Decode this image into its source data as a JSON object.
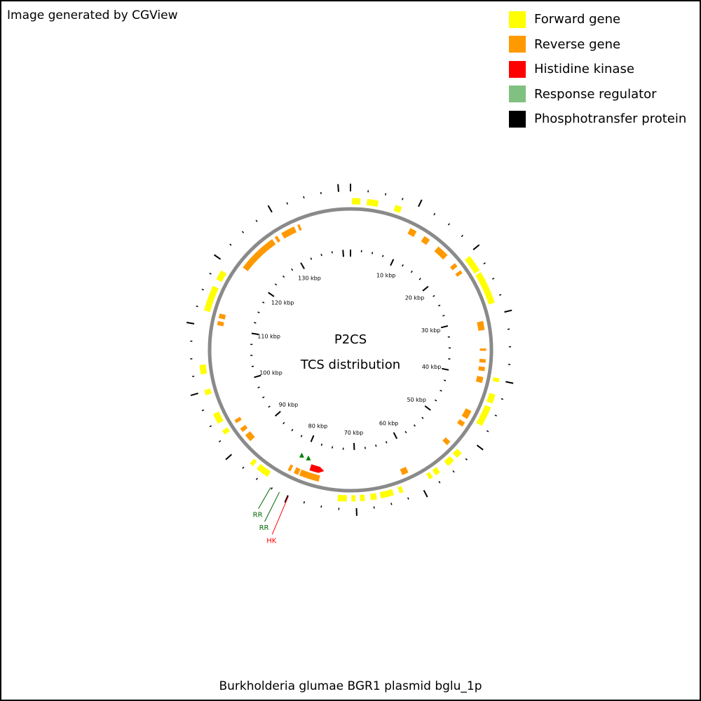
{
  "credit": "Image generated by CGView",
  "caption": "Burkholderia glumae BGR1 plasmid bglu_1p",
  "center_title": [
    "P2CS",
    "TCS distribution"
  ],
  "legend": [
    {
      "label": "Forward gene",
      "color": "#ffff00"
    },
    {
      "label": "Reverse gene",
      "color": "#ff9900"
    },
    {
      "label": "Histidine kinase",
      "color": "#ff0000"
    },
    {
      "label": "Response regulator",
      "color": "#80c080"
    },
    {
      "label": "Phosphotransfer protein",
      "color": "#000000"
    }
  ],
  "colors": {
    "forward": "#ffff00",
    "reverse": "#ff9900",
    "hk": "#ff0000",
    "rr_marker": "#008000",
    "rr_label": "#006600",
    "hk_label": "#cc0000",
    "backbone": "#8a8a8a"
  },
  "map": {
    "total_kbp": 141.7,
    "tick_labels": [
      "10 kbp",
      "20 kbp",
      "30 kbp",
      "40 kbp",
      "50 kbp",
      "60 kbp",
      "70 kbp",
      "80 kbp",
      "90 kbp",
      "100 kbp",
      "110 kbp",
      "120 kbp",
      "130 kbp"
    ],
    "forward_genes_kbp": [
      [
        0.2,
        1.5
      ],
      [
        2.5,
        4.2
      ],
      [
        6.8,
        7.8
      ],
      [
        20.4,
        23.0
      ],
      [
        23.3,
        28.3
      ],
      [
        39.7,
        40.3
      ],
      [
        42.2,
        43.6
      ],
      [
        44.2,
        47.3
      ],
      [
        52.3,
        53.3
      ],
      [
        53.9,
        55.1
      ],
      [
        56.6,
        57.4
      ],
      [
        57.9,
        58.5
      ],
      [
        62.8,
        63.4
      ],
      [
        64.3,
        66.3
      ],
      [
        66.9,
        67.8
      ],
      [
        68.7,
        69.4
      ],
      [
        70.1,
        70.7
      ],
      [
        71.4,
        72.8
      ],
      [
        83.9,
        85.9
      ],
      [
        86.6,
        87.2
      ],
      [
        92.9,
        93.6
      ],
      [
        94.8,
        96.4
      ],
      [
        99.4,
        100.2
      ],
      [
        102.6,
        104.0
      ],
      [
        112.2,
        116.1
      ],
      [
        117.2,
        118.7
      ]
    ],
    "reverse_genes_kbp": [
      [
        10.3,
        11.5
      ],
      [
        13.0,
        14.1
      ],
      [
        15.9,
        18.0
      ],
      [
        19.8,
        20.5
      ],
      [
        21.3,
        21.9
      ],
      [
        30.6,
        32.1
      ],
      [
        35.2,
        35.6
      ],
      [
        37.0,
        37.6
      ],
      [
        38.3,
        39.0
      ],
      [
        40.0,
        41.0
      ],
      [
        46.0,
        47.5
      ],
      [
        48.2,
        49.0
      ],
      [
        52.2,
        53.0
      ],
      [
        60.9,
        62.0
      ],
      [
        76.2,
        79.6
      ],
      [
        79.8,
        80.6
      ],
      [
        81.2,
        81.7
      ],
      [
        89.6,
        90.9
      ],
      [
        91.6,
        92.3
      ],
      [
        93.4,
        94.0
      ],
      [
        110.4,
        111.1
      ],
      [
        111.6,
        112.4
      ],
      [
        121.0,
        127.8
      ],
      [
        128.3,
        128.8
      ],
      [
        129.6,
        132.0
      ],
      [
        132.6,
        133.0
      ]
    ],
    "hk_gene_kbp": [
      75.8,
      78.2
    ],
    "rr_markers_kbp": [
      79.2,
      80.6
    ],
    "feature_labels": [
      {
        "text": "RR",
        "kbp": 82.7,
        "kind": "rr"
      },
      {
        "text": "RR",
        "kbp": 81.3,
        "kind": "rr"
      },
      {
        "text": "HK",
        "kbp": 79.9,
        "kind": "hk"
      }
    ]
  }
}
